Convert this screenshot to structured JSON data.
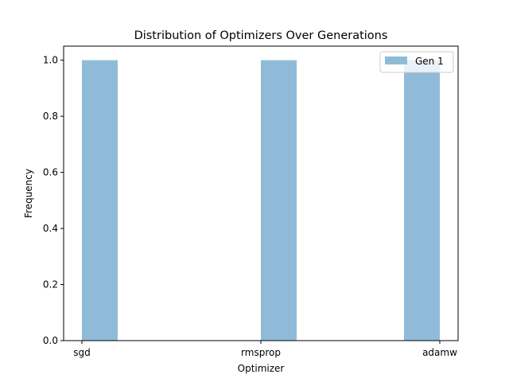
{
  "chart_data": {
    "type": "bar",
    "title": "Distribution of Optimizers Over Generations",
    "xlabel": "Optimizer",
    "ylabel": "Frequency",
    "categories": [
      "sgd",
      "rmsprop",
      "adamw"
    ],
    "series": [
      {
        "name": "Gen 1",
        "values": [
          1.0,
          1.0,
          1.0
        ],
        "color": "#8fbbd9"
      }
    ],
    "ylim": [
      0,
      1.05
    ],
    "yticks": [
      0.0,
      0.2,
      0.4,
      0.6,
      0.8,
      1.0
    ],
    "ytick_labels": [
      "0.0",
      "0.2",
      "0.4",
      "0.6",
      "0.8",
      "1.0"
    ],
    "grid": false,
    "legend_position": "top-right"
  }
}
